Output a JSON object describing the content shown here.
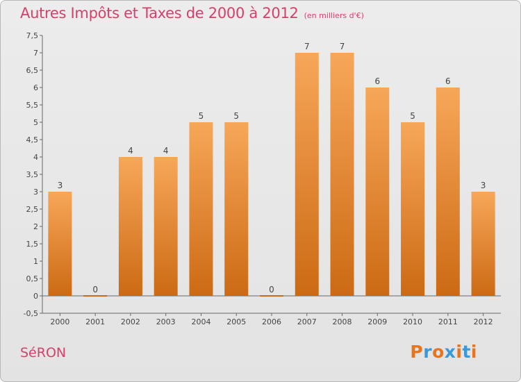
{
  "header": {
    "title": "Autres Impôts et Taxes de 2000 à 2012",
    "unit": "(en milliers d'€)"
  },
  "footer": {
    "commune": "SéRON",
    "brand": [
      "P",
      "r",
      "o",
      "x",
      "i",
      "t",
      "i"
    ],
    "brand_colors": [
      "#e8741e",
      "#3a9ad9",
      "#e8741e",
      "#3a9ad9",
      "#e8741e",
      "#3a9ad9",
      "#e8741e"
    ]
  },
  "colors": {
    "bar_light": "#f7a759",
    "bar_dark": "#cc6a14",
    "title": "#d63f6a"
  },
  "chart_data": {
    "type": "bar",
    "categories": [
      "2000",
      "2001",
      "2002",
      "2003",
      "2004",
      "2005",
      "2006",
      "2007",
      "2008",
      "2009",
      "2010",
      "2011",
      "2012"
    ],
    "values": [
      3,
      0,
      4,
      4,
      5,
      5,
      0,
      7,
      7,
      6,
      5,
      6,
      3
    ],
    "value_labels": [
      "3",
      "0",
      "4",
      "4",
      "5",
      "5",
      "0",
      "7",
      "7",
      "6",
      "5",
      "6",
      "3"
    ],
    "yticks": [
      "-0,5",
      "0",
      "0,5",
      "1",
      "1,5",
      "2",
      "2,5",
      "3",
      "3,5",
      "4",
      "4,5",
      "5",
      "5,5",
      "6",
      "6,5",
      "7",
      "7,5"
    ],
    "ylim": [
      -0.5,
      7.5
    ],
    "grid": false
  }
}
